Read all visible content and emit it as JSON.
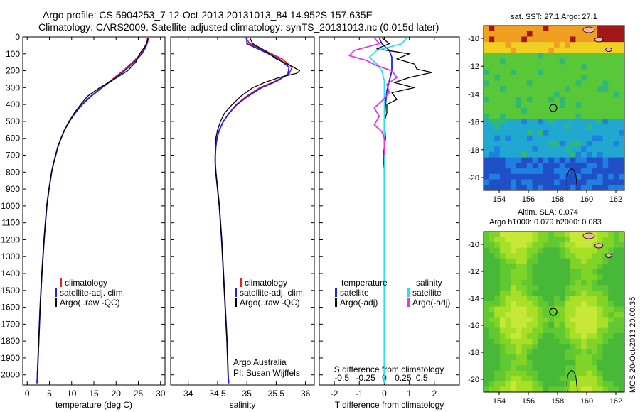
{
  "header": {
    "line1": "Argo profile: CS 5904253_7 12-Oct-2013 20131013_84 14.952S 157.635E",
    "line2": "Climatology: CARS2009. Satellite-adjusted climatology: synTS_20131013.nc (0.015d later)"
  },
  "colors": {
    "climatology": "#e8221e",
    "satellite": "#1f22e0",
    "argo": "#000000",
    "salinity_satellite": "#30e0e8",
    "salinity_argo": "#e03ae0"
  },
  "depth_axis": {
    "ticks": [
      0,
      100,
      200,
      300,
      400,
      500,
      600,
      700,
      800,
      900,
      1000,
      1100,
      1200,
      1300,
      1400,
      1500,
      1600,
      1700,
      1800,
      1900,
      2000
    ],
    "range": [
      0,
      2060
    ]
  },
  "chart_data": [
    {
      "type": "line",
      "xlabel": "temperature (deg C)",
      "xlim": [
        -1,
        31
      ],
      "xticks": [
        0,
        5,
        10,
        15,
        20,
        25,
        30
      ],
      "ylim": [
        0,
        2060
      ],
      "legend": [
        "climatology",
        "satellite-adj. clim.",
        "Argo(..raw -QC)"
      ],
      "series": [
        {
          "name": "climatology",
          "depth": [
            5,
            30,
            60,
            100,
            150,
            200,
            250,
            300,
            350,
            400,
            450,
            500,
            550,
            600,
            650,
            700,
            750,
            800,
            900,
            1000,
            1200,
            1400,
            1600,
            1800,
            2000,
            2050
          ],
          "values": [
            27.3,
            27.1,
            26.7,
            25.6,
            23.7,
            21.6,
            19.2,
            16.7,
            14.3,
            12.3,
            10.7,
            9.4,
            8.4,
            7.6,
            6.9,
            6.4,
            5.9,
            5.5,
            4.9,
            4.4,
            3.8,
            3.3,
            2.9,
            2.6,
            2.3,
            2.2
          ]
        },
        {
          "name": "satellite-adj. clim.",
          "depth": [
            5,
            30,
            60,
            100,
            150,
            200,
            250,
            300,
            350,
            400,
            450,
            500,
            550,
            600,
            650,
            700,
            750,
            800,
            900,
            1000,
            1200,
            1400,
            1600,
            1800,
            2000,
            2050
          ],
          "values": [
            27.1,
            27.0,
            26.7,
            25.8,
            24.0,
            21.9,
            19.4,
            16.8,
            14.4,
            12.4,
            10.8,
            9.5,
            8.4,
            7.6,
            6.9,
            6.4,
            5.9,
            5.5,
            4.9,
            4.4,
            3.8,
            3.3,
            2.9,
            2.6,
            2.3,
            2.2
          ]
        },
        {
          "name": "Argo(..raw -QC)",
          "depth": [
            5,
            30,
            60,
            100,
            150,
            200,
            250,
            300,
            350,
            400,
            450,
            500,
            550,
            600,
            650,
            700,
            750,
            800,
            900,
            1000,
            1200,
            1400,
            1600,
            1800,
            2000
          ],
          "values": [
            27.2,
            27.0,
            26.4,
            25.3,
            24.4,
            22.6,
            19.6,
            16.3,
            13.6,
            12.0,
            10.6,
            9.5,
            8.4,
            7.6,
            6.9,
            6.4,
            5.9,
            5.5,
            4.9,
            4.4,
            3.8,
            3.3,
            2.9,
            2.6,
            2.3
          ]
        }
      ]
    },
    {
      "type": "line",
      "xlabel": "salinity",
      "xlim": [
        33.7,
        36.15
      ],
      "xticks": [
        34,
        34.5,
        35,
        35.5,
        36
      ],
      "ylim": [
        0,
        2060
      ],
      "legend": [
        "climatology",
        "satellite-adj. clim.",
        "Argo(..raw -QC)"
      ],
      "notes": [
        "Argo Australia",
        "PI: Susan Wijffels"
      ],
      "series": [
        {
          "name": "climatology",
          "depth": [
            5,
            40,
            80,
            130,
            180,
            220,
            260,
            300,
            350,
            400,
            450,
            500,
            550,
            600,
            650,
            700,
            750,
            800,
            900,
            1000,
            1200,
            1400,
            1600,
            1800,
            2000,
            2050
          ],
          "values": [
            34.98,
            35.05,
            35.3,
            35.6,
            35.77,
            35.72,
            35.5,
            35.22,
            35.0,
            34.82,
            34.7,
            34.6,
            34.53,
            34.49,
            34.47,
            34.46,
            34.46,
            34.47,
            34.5,
            34.53,
            34.57,
            34.6,
            34.63,
            34.66,
            34.68,
            34.69
          ]
        },
        {
          "name": "satellite-adj. clim.",
          "depth": [
            5,
            40,
            80,
            130,
            180,
            220,
            260,
            300,
            350,
            400,
            450,
            500,
            550,
            600,
            650,
            700,
            750,
            800,
            900,
            1000,
            1200,
            1400,
            1600,
            1800,
            2000,
            2050
          ],
          "values": [
            35.0,
            35.0,
            35.25,
            35.55,
            35.72,
            35.7,
            35.52,
            35.25,
            35.02,
            34.83,
            34.7,
            34.6,
            34.53,
            34.49,
            34.47,
            34.46,
            34.46,
            34.47,
            34.5,
            34.53,
            34.57,
            34.6,
            34.63,
            34.66,
            34.68,
            34.69
          ]
        },
        {
          "name": "Argo(..raw -QC)",
          "depth": [
            5,
            40,
            80,
            130,
            170,
            200,
            215,
            240,
            270,
            300,
            350,
            400,
            450,
            500,
            550,
            600,
            650,
            700,
            750,
            800,
            900,
            1000,
            1200,
            1400,
            1600,
            1800,
            2000
          ],
          "values": [
            35.05,
            35.1,
            35.3,
            35.5,
            35.75,
            35.9,
            35.85,
            35.55,
            35.3,
            35.1,
            34.9,
            34.75,
            34.62,
            34.55,
            34.5,
            34.47,
            34.46,
            34.46,
            34.46,
            34.47,
            34.5,
            34.53,
            34.57,
            34.6,
            34.63,
            34.66,
            34.68
          ]
        }
      ]
    },
    {
      "type": "line",
      "xlabel": "T difference from climatology",
      "xlabel_top": "S difference from climatology",
      "xlim": [
        -2.6,
        3.0
      ],
      "xticks": [
        -2,
        -1,
        0,
        1,
        2
      ],
      "top_ticks": [
        {
          "label": "-0.5",
          "x": -1.7
        },
        {
          "label": "-0.25",
          "x": -0.75
        },
        {
          "label": "0",
          "x": 0
        },
        {
          "label": "0.25",
          "x": 0.75
        },
        {
          "label": "0.5",
          "x": 1.5
        }
      ],
      "ylim": [
        0,
        2060
      ],
      "legend_temperature": {
        "title": "temperature",
        "entries": [
          "satellite",
          "Argo(-adj)"
        ]
      },
      "legend_salinity": {
        "title": "salinity",
        "entries": [
          "satellite",
          "Argo(-adj)"
        ]
      },
      "series": [
        {
          "name": "satellite",
          "depth": [
            5,
            40,
            80,
            120,
            160,
            200,
            260,
            320,
            400,
            500,
            700,
            1000,
            1500,
            2050
          ],
          "values": [
            -0.2,
            -0.1,
            0.2,
            0.3,
            0.3,
            0.3,
            0.2,
            0.1,
            0.05,
            0.0,
            0.0,
            0.0,
            0.0,
            0.0
          ]
        },
        {
          "name": "Argo(-adj)",
          "depth": [
            5,
            40,
            70,
            100,
            130,
            160,
            190,
            210,
            240,
            270,
            300,
            330,
            370,
            400,
            450,
            500,
            600,
            700,
            800,
            1000,
            1200,
            1500,
            1800,
            2000
          ],
          "values": [
            -0.1,
            0.2,
            -0.3,
            1.0,
            0.5,
            1.2,
            1.3,
            1.9,
            1.0,
            0.4,
            1.2,
            0.3,
            0.5,
            0.1,
            0.1,
            0.0,
            0.05,
            -0.05,
            0.0,
            0.0,
            0.0,
            0.0,
            0.0,
            0.0
          ]
        },
        {
          "name": "salinity satellite",
          "depth": [
            5,
            40,
            80,
            120,
            160,
            200,
            260,
            320,
            400,
            500,
            700,
            1000,
            1500,
            2050
          ],
          "values": [
            0.9,
            0.7,
            -0.3,
            -0.6,
            -0.3,
            -0.1,
            0.0,
            0.0,
            0.0,
            0.0,
            0.0,
            0.0,
            0.0,
            0.0
          ]
        },
        {
          "name": "salinity Argo(-adj)",
          "depth": [
            5,
            40,
            80,
            110,
            140,
            170,
            200,
            240,
            280,
            330,
            380,
            420,
            470,
            520,
            560,
            600,
            700
          ],
          "values": [
            -0.4,
            -0.2,
            -1.2,
            -1.4,
            -0.7,
            -0.3,
            0.3,
            0.5,
            0.1,
            0.2,
            -0.1,
            -0.4,
            -0.2,
            -0.4,
            -0.1,
            0.0,
            0.0
          ]
        }
      ]
    }
  ],
  "maps": {
    "sst": {
      "title": "sat. SST: 27.1 Argo: 27.1",
      "yticks": [
        "-10",
        "-12",
        "-14",
        "-16",
        "-18",
        "-20"
      ],
      "xticks": [
        "154",
        "156",
        "158",
        "160",
        "162"
      ]
    },
    "sla": {
      "title_line1": "Altim. SLA: 0.074",
      "title_line2": "Argo h1000: 0.079 h2000: 0.083",
      "yticks": [
        "-10",
        "-12",
        "-14",
        "-16",
        "-18",
        "-20"
      ],
      "xticks": [
        "154",
        "156",
        "158",
        "160",
        "162"
      ]
    }
  },
  "footer": {
    "stamp": "IMOS 20-Oct-2013 20:00:35"
  }
}
